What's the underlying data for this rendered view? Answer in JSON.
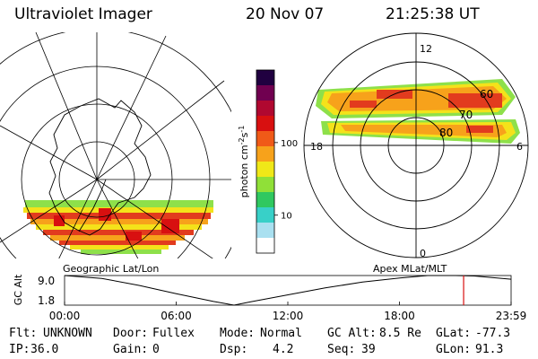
{
  "header": {
    "title": "Ultraviolet Imager",
    "date": "20 Nov 07",
    "time": "21:25:38 UT"
  },
  "colors": {
    "band_red": "#e23b1e",
    "band_orange": "#f7a21b",
    "band_yellow": "#f4e21a",
    "band_green": "#8ee04a"
  },
  "left_panel": {
    "caption": "Geographic Lat/Lon"
  },
  "colorbar": {
    "label": "photon cm",
    "label_sup1": "-2",
    "label_mid": "s",
    "label_sup2": "-1",
    "ticks": [
      {
        "label": "100",
        "value": 100
      },
      {
        "label": "10",
        "value": 10
      }
    ],
    "range": [
      3,
      1000
    ],
    "scale": "log",
    "colors": [
      "#ffffff",
      "#a9e0f0",
      "#38d0c8",
      "#30c860",
      "#90e038",
      "#f0e818",
      "#f7a21b",
      "#f05a18",
      "#d81010",
      "#b00830",
      "#700050",
      "#200040"
    ]
  },
  "right_panel": {
    "caption": "Apex MLat/MLT",
    "mlt_labels": {
      "top": "12",
      "left": "18",
      "right": "6",
      "bottom": "0"
    },
    "lat_labels": [
      "60",
      "70",
      "80"
    ]
  },
  "gc_alt_plot": {
    "ylabel": "GC Alt",
    "yticks": [
      "9.0",
      "1.8"
    ],
    "xticks": [
      "00:00",
      "06:00",
      "12:00",
      "18:00",
      "23:59"
    ]
  },
  "chart_data": {
    "type": "line",
    "title": "",
    "xlabel": "",
    "ylabel": "GC Alt",
    "x": [
      0,
      2,
      4,
      6,
      8,
      9.1,
      10,
      12,
      14,
      16,
      18,
      19.5,
      21.0,
      22,
      23.98
    ],
    "y": [
      9.0,
      8.3,
      6.6,
      4.6,
      2.7,
      1.8,
      2.6,
      4.3,
      6.0,
      7.4,
      8.4,
      9.0,
      9.1,
      8.9,
      8.1
    ],
    "xlim": [
      0,
      23.98
    ],
    "ylim": [
      1.8,
      9.0
    ],
    "marker_time": 21.43
  },
  "status": {
    "flt_label": "Flt:",
    "flt_value": "UNKNOWN",
    "door_label": "Door:",
    "door_value": "Fullex",
    "mode_label": "Mode:",
    "mode_value": "Normal",
    "gcalt_label": "GC Alt:",
    "gcalt_value": "8.5 Re",
    "glat_label": "GLat:",
    "glat_value": "-77.3",
    "ip_label": "IP:",
    "ip_value": "36.0",
    "gain_label": "Gain:",
    "gain_value": "0",
    "dsp_label": "Dsp:",
    "dsp_value": "4.2",
    "seq_label": "Seq:",
    "seq_value": "39",
    "glon_label": "GLon:",
    "glon_value": "91.3"
  }
}
